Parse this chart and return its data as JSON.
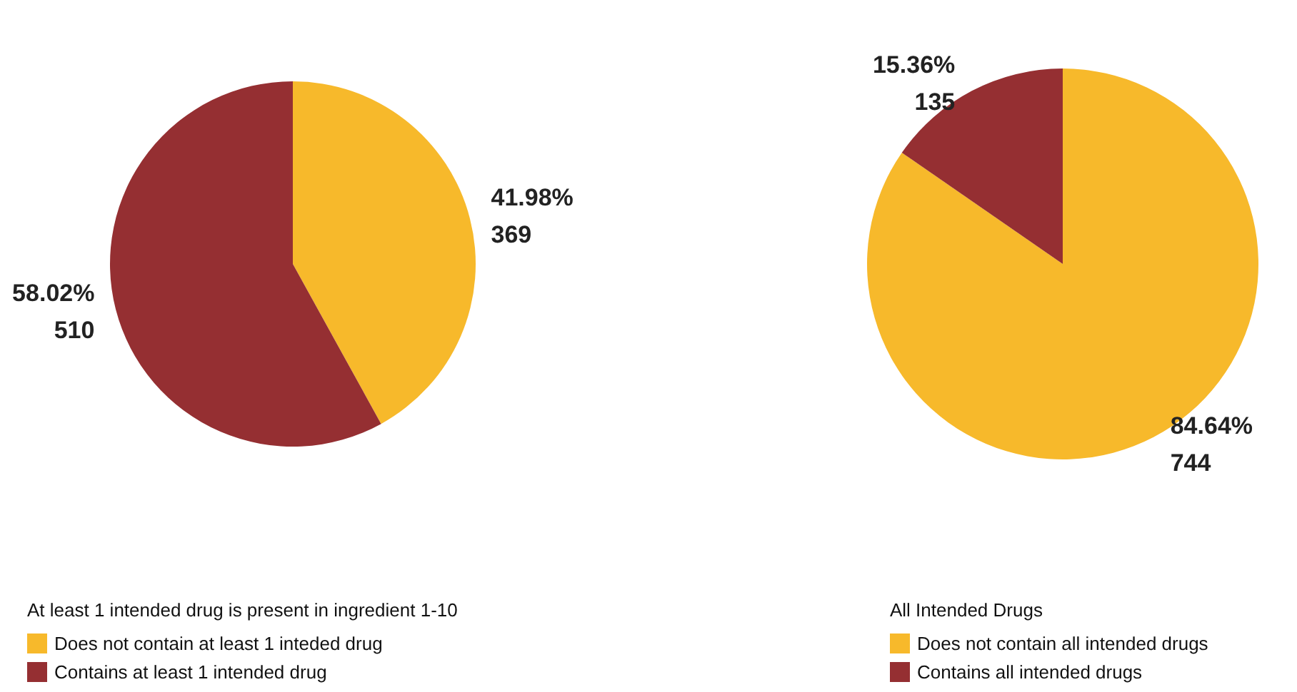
{
  "chart_data": [
    {
      "type": "pie",
      "legend_title": "At least 1 intended drug is present in ingredient 1-10",
      "categories": [
        "Does not contain at least 1 inteded drug",
        "Contains at least 1 intended drug"
      ],
      "values": [
        369,
        510
      ],
      "colors": [
        "#f7b92b",
        "#952f32"
      ],
      "value_labels": [
        "41.98%\n369",
        "58.02%\n510"
      ],
      "legend": "bottom left"
    },
    {
      "type": "pie",
      "legend_title": "All Intended Drugs",
      "categories": [
        "Does not contain all intended drugs",
        "Contains all intended drugs"
      ],
      "values": [
        744,
        135
      ],
      "colors": [
        "#f7b92b",
        "#952f32"
      ],
      "value_labels": [
        "84.64%\n744",
        "15.36%\n135"
      ],
      "legend": "bottom left"
    }
  ]
}
